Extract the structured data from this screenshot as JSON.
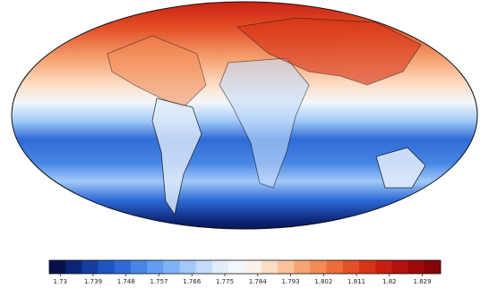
{
  "colorbar": {
    "lim": [
      1.727,
      1.834
    ],
    "ticks": [
      1.73,
      1.739,
      1.748,
      1.757,
      1.766,
      1.775,
      1.784,
      1.793,
      1.802,
      1.811,
      1.82,
      1.829
    ],
    "colors": [
      "#08104a",
      "#0c2577",
      "#143d9e",
      "#1f55bf",
      "#2f6bd6",
      "#4785e4",
      "#629def",
      "#80b3f5",
      "#a2c9f8",
      "#c4dcfa",
      "#e2edfb",
      "#f4f7fb",
      "#fbf1ea",
      "#fbdcc4",
      "#f9c29c",
      "#f6a676",
      "#f28a54",
      "#ec6d3a",
      "#e34f26",
      "#d73418",
      "#c81e12",
      "#b3120e",
      "#9c0a0b",
      "#850508"
    ]
  }
}
